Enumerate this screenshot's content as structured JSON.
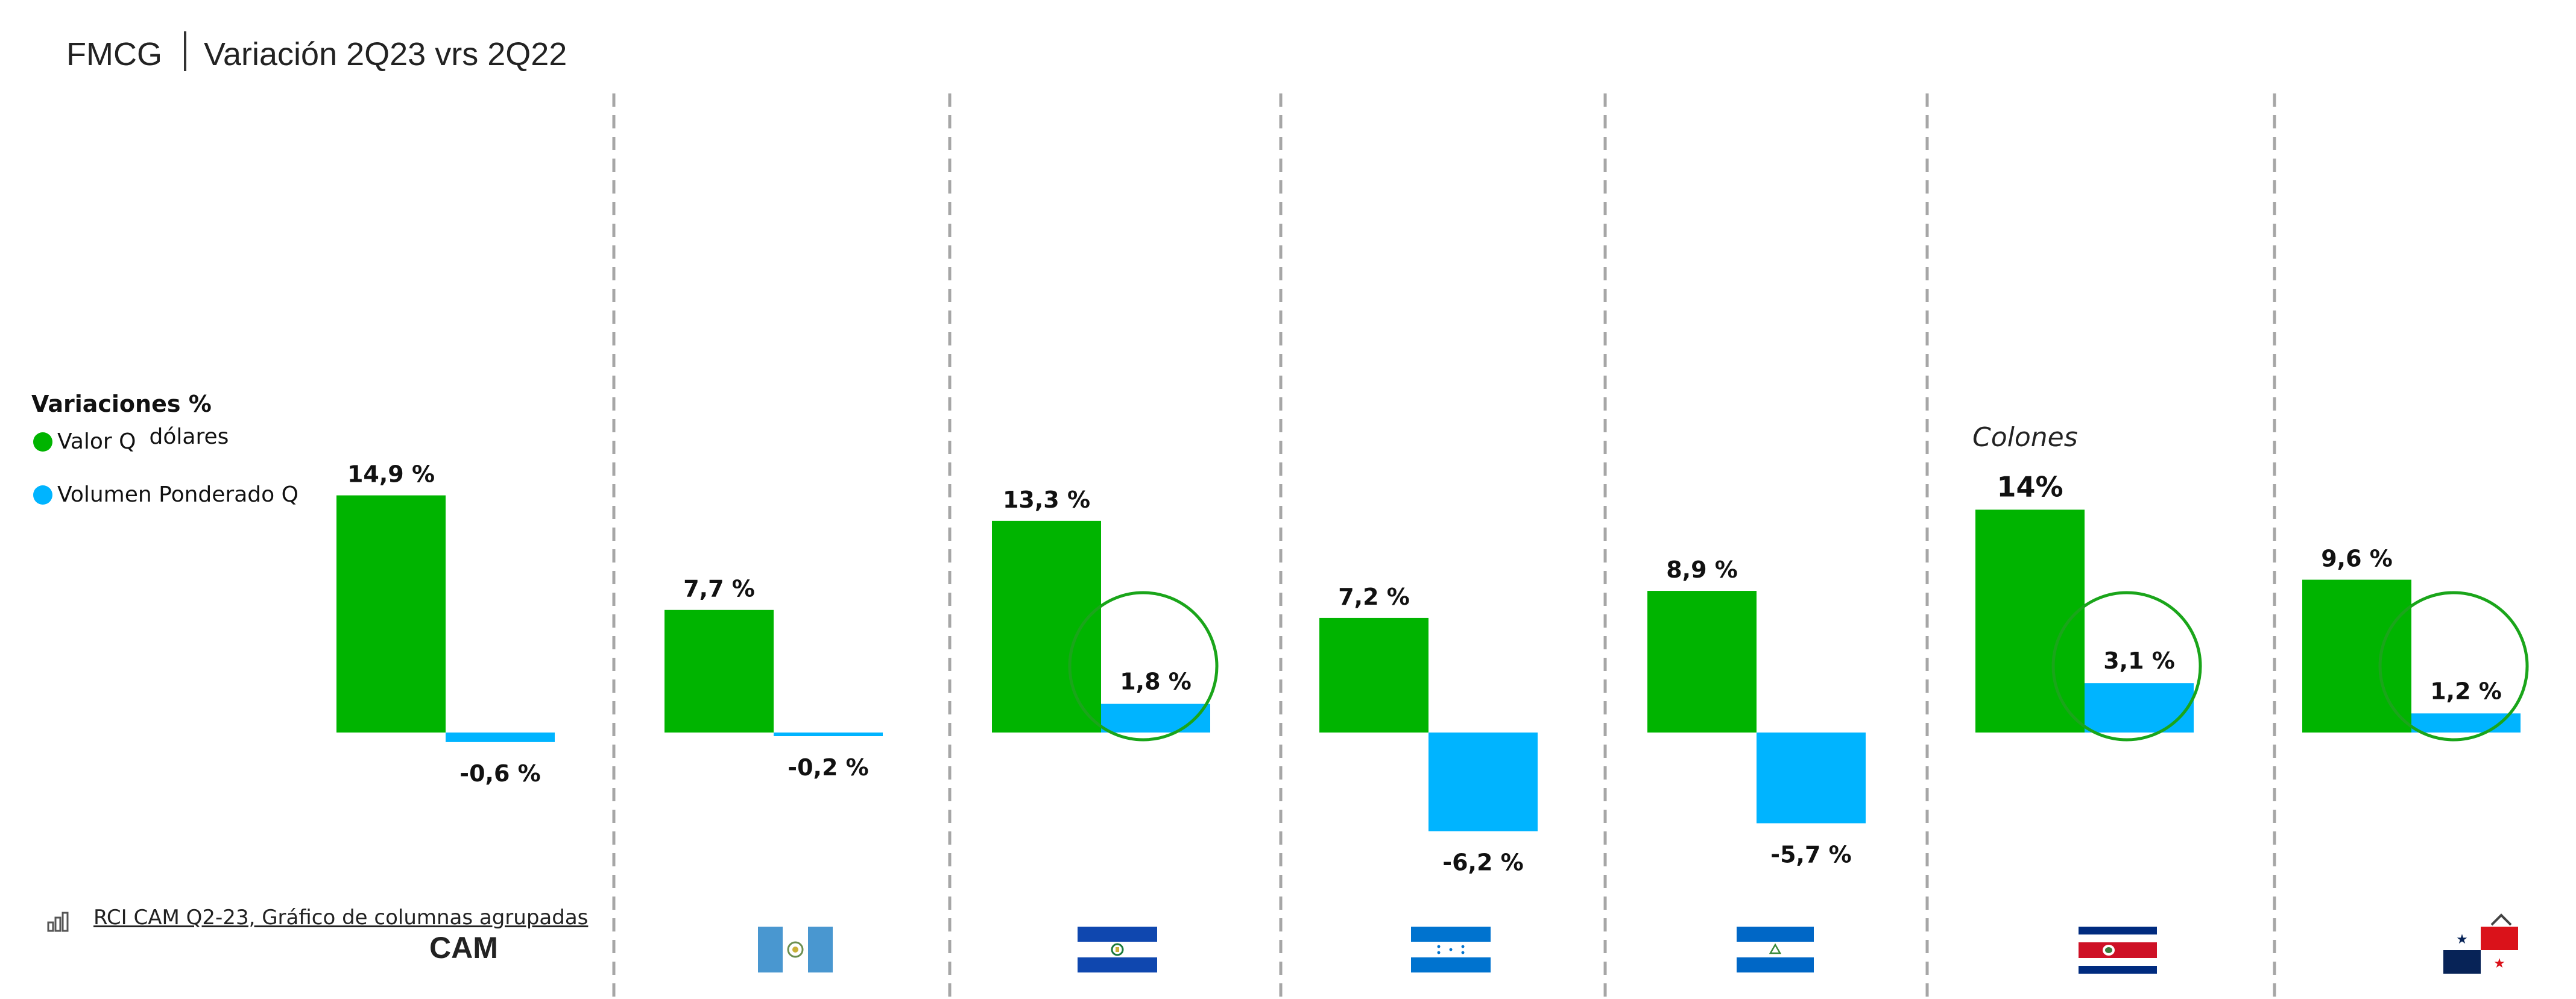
{
  "header": {
    "brand": "FMCG",
    "title": "Variación 2Q23  vrs 2Q22"
  },
  "legend": {
    "title": "Variaciones %",
    "items": [
      {
        "label": "Valor Q",
        "suffix": "dólares",
        "color": "#00b400"
      },
      {
        "label": "Volumen Ponderado Q",
        "color": "#00b4ff"
      }
    ]
  },
  "source": {
    "label": "RCI CAM Q2-23, Gráfico de columnas agrupadas"
  },
  "colors": {
    "valor": "#00b400",
    "volumen": "#00b4ff",
    "highlight": "#1aa51a",
    "divider": "#a6a6a6"
  },
  "chart_data": {
    "type": "bar",
    "categories": [
      "CAM",
      "Guatemala",
      "El Salvador",
      "Honduras",
      "Nicaragua",
      "Costa Rica",
      "Panamá"
    ],
    "category_labels": [
      "CAM",
      "",
      "",
      "",
      "",
      "",
      ""
    ],
    "flags": [
      "none",
      "guatemala-flag",
      "el-salvador-flag",
      "honduras-flag",
      "nicaragua-flag",
      "costa-rica-flag",
      "panama-flag"
    ],
    "series": [
      {
        "name": "Valor Q dólares",
        "values": [
          14.9,
          7.7,
          13.3,
          7.2,
          8.9,
          14,
          9.6
        ],
        "labels": [
          "14,9 %",
          "7,7 %",
          "13,3 %",
          "7,2 %",
          "8,9 %",
          "14%",
          "9,6 %"
        ]
      },
      {
        "name": "Volumen Ponderado Q",
        "values": [
          -0.6,
          -0.2,
          1.8,
          -6.2,
          -5.7,
          3.1,
          1.2
        ],
        "labels": [
          "-0,6 %",
          "-0,2 %",
          "1,8 %",
          "-6,2 %",
          "-5,7 %",
          "3,1 %",
          "1,2 %"
        ]
      }
    ],
    "annotations": [
      {
        "category": "Costa Rica",
        "text": "Colones"
      }
    ],
    "highlighted": [
      "El Salvador",
      "Costa Rica",
      "Panamá"
    ],
    "ylim": [
      -8,
      16
    ],
    "grid": false,
    "legend_position": "left"
  }
}
